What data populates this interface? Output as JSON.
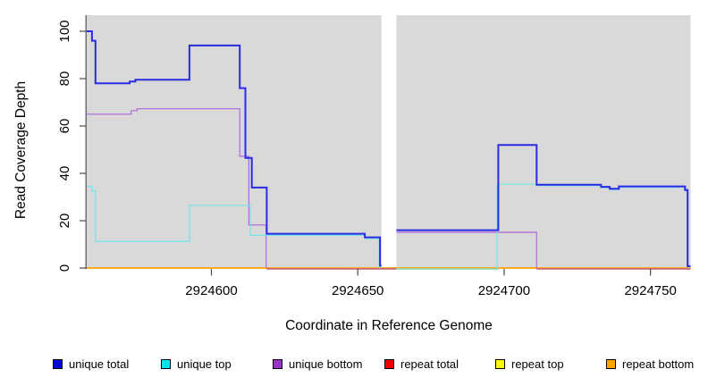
{
  "figure": {
    "x_axis": {
      "title": "Coordinate in Reference Genome",
      "ticks": [
        {
          "value": 2924600,
          "label": "2924600"
        },
        {
          "value": 2924650,
          "label": "2924650"
        },
        {
          "value": 2924700,
          "label": "2924700"
        },
        {
          "value": 2924750,
          "label": "2924750"
        }
      ]
    },
    "y_axis": {
      "title": "Read Coverage Depth",
      "ticks": [
        {
          "value": 0,
          "label": "0"
        },
        {
          "value": 20,
          "label": "20"
        },
        {
          "value": 40,
          "label": "40"
        },
        {
          "value": 60,
          "label": "60"
        },
        {
          "value": 80,
          "label": "80"
        },
        {
          "value": 100,
          "label": "100"
        }
      ]
    },
    "legend": [
      {
        "id": "unique-total",
        "label": "unique total",
        "swatch": "#0000DD"
      },
      {
        "id": "unique-top",
        "label": "unique top",
        "swatch": "#00E5EE"
      },
      {
        "id": "unique-bottom",
        "label": "unique bottom",
        "swatch": "#9932CC"
      },
      {
        "id": "repeat-total",
        "label": "repeat total",
        "swatch": "#EE0000"
      },
      {
        "id": "repeat-top",
        "label": "repeat top",
        "swatch": "#FFFF00"
      },
      {
        "id": "repeat-bottom",
        "label": "repeat bottom",
        "swatch": "#FFA500"
      }
    ]
  },
  "chart_data": {
    "type": "line",
    "subtype": "step-coverage",
    "grid": false,
    "legend_position": "bottom",
    "panel_background": "#D9D9D9",
    "x_domain": [
      2924557.4,
      2924763.7
    ],
    "y_domain": [
      0,
      106.8
    ],
    "gap": {
      "x0": 2924658.1,
      "x1": 2924663.2,
      "note": "white band, no coverage data"
    },
    "series": [
      {
        "name": "repeat total",
        "color": "#EE0000",
        "width": 1.4,
        "segments": [
          {
            "points": [
              [
                2924557.4,
                0
              ]
            ],
            "end": 2924763.7
          }
        ]
      },
      {
        "name": "repeat top",
        "color": "#FFFF00",
        "width": 1.4,
        "segments": [
          {
            "points": [
              [
                2924557.4,
                0
              ]
            ],
            "end": 2924763.7
          }
        ]
      },
      {
        "name": "repeat bottom",
        "color": "#FFA51E",
        "width": 1.6,
        "segments": [
          {
            "points": [
              [
                2924557.4,
                0
              ]
            ],
            "end": 2924763.7
          }
        ]
      },
      {
        "name": "unique bottom",
        "color": "#AD66DC",
        "width": 1.2,
        "segments": [
          {
            "points": [
              [
                2924557.4,
                65
              ],
              [
                2924572.6,
                66.5
              ],
              [
                2924574.6,
                67.3
              ],
              [
                2924609.7,
                47.2
              ],
              [
                2924612.8,
                18.2
              ],
              [
                2924618.7,
                0
              ]
            ],
            "end": 2924618.7
          },
          {
            "points": [
              [
                2924663.2,
                15.1
              ],
              [
                2924711.1,
                0
              ]
            ],
            "end": 2924711.1
          }
        ]
      },
      {
        "name": "unique top",
        "color": "#72E5EC",
        "width": 1.2,
        "segments": [
          {
            "points": [
              [
                2924557.4,
                34.5
              ],
              [
                2924559.2,
                32.5
              ],
              [
                2924560.4,
                11.3
              ],
              [
                2924592.5,
                26.5
              ],
              [
                2924613.3,
                13.8
              ],
              [
                2924652.4,
                12.5
              ],
              [
                2924657.3,
                0.3
              ]
            ],
            "end": 2924658.1
          },
          {
            "points": [
              [
                2924697.6,
                0
              ],
              [
                2924697.6,
                35.4
              ],
              [
                2924711.1,
                34.8
              ],
              [
                2924733.1,
                33.9
              ],
              [
                2924736.1,
                33.1
              ],
              [
                2924739.2,
                34.1
              ],
              [
                2924761.8,
                32.6
              ],
              [
                2924762.7,
                0.5
              ]
            ],
            "end": 2924763.7
          }
        ]
      },
      {
        "name": "unique total",
        "color": "#2B2BE2",
        "width": 2,
        "segments": [
          {
            "points": [
              [
                2924557.4,
                100
              ],
              [
                2924559.2,
                96
              ],
              [
                2924560.4,
                78
              ],
              [
                2924572.1,
                78.8
              ],
              [
                2924574.0,
                79.5
              ],
              [
                2924592.5,
                94
              ],
              [
                2924609.7,
                76
              ],
              [
                2924611.6,
                46.5
              ],
              [
                2924613.8,
                34
              ],
              [
                2924618.9,
                14.5
              ],
              [
                2924652.4,
                13
              ],
              [
                2924657.6,
                1
              ]
            ],
            "end": 2924658.1
          },
          {
            "points": [
              [
                2924663.2,
                16
              ],
              [
                2924698.0,
                52
              ],
              [
                2924711.1,
                35.2
              ],
              [
                2924733.1,
                34.3
              ],
              [
                2924736.1,
                33.5
              ],
              [
                2924739.2,
                34.5
              ],
              [
                2924761.8,
                33
              ],
              [
                2924762.7,
                0.8
              ]
            ],
            "end": 2924763.7
          }
        ]
      }
    ],
    "zero_overlaps": [
      {
        "x0": 2924618.9,
        "x1": 2924663.2,
        "color": "#C9607F",
        "meaning": "unique bottom at 0 blended over repeat lines"
      },
      {
        "x0": 2924663.2,
        "x1": 2924698.0,
        "color": "#8BD7A9",
        "meaning": "unique top at 0 blended over repeat lines"
      },
      {
        "x0": 2924711.1,
        "x1": 2924763.7,
        "color": "#C9607F",
        "meaning": "unique bottom at 0 blended over repeat lines"
      }
    ]
  }
}
